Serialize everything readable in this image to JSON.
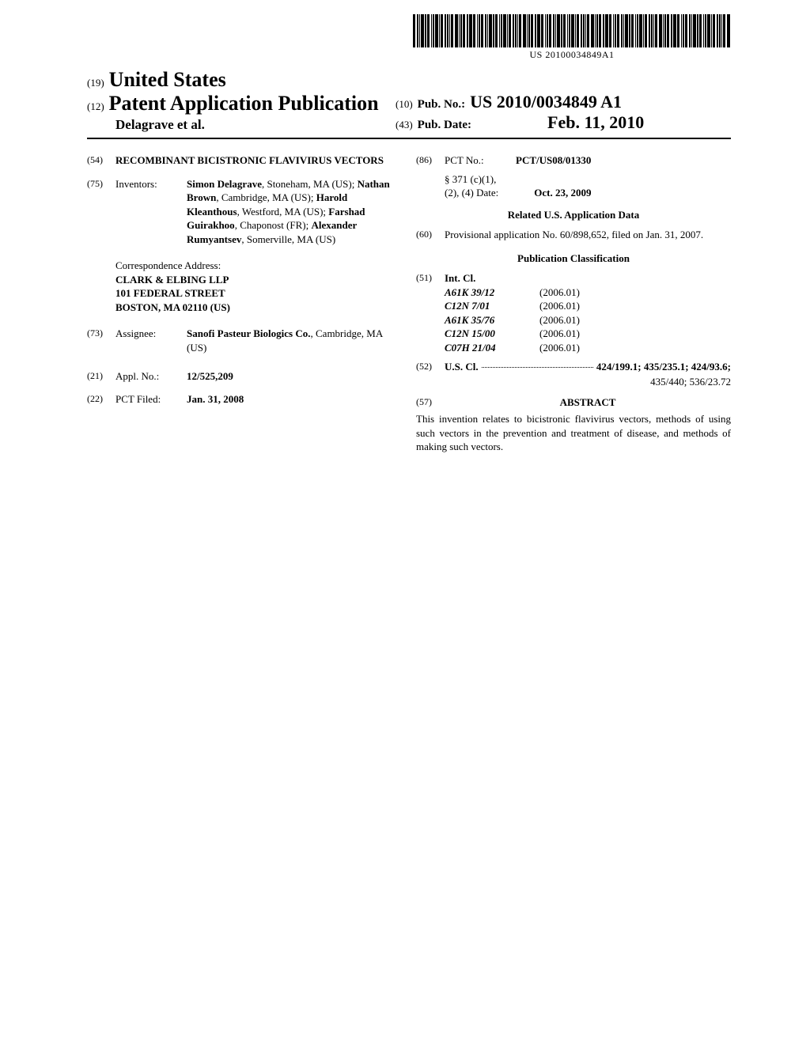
{
  "barcode_text": "US 20100034849A1",
  "header": {
    "field19_num": "(19)",
    "country": "United States",
    "field12_num": "(12)",
    "pub_type": "Patent Application Publication",
    "authors": "Delagrave et al.",
    "field10_num": "(10)",
    "pub_no_label": "Pub. No.:",
    "pub_no_value": "US 2010/0034849 A1",
    "field43_num": "(43)",
    "pub_date_label": "Pub. Date:",
    "pub_date_value": "Feb. 11, 2010"
  },
  "left": {
    "f54": {
      "num": "(54)",
      "title": "RECOMBINANT BICISTRONIC FLAVIVIRUS VECTORS"
    },
    "f75": {
      "num": "(75)",
      "label": "Inventors:",
      "html_parts": [
        {
          "b": "Simon Delagrave"
        },
        {
          "t": ", Stoneham, MA (US); "
        },
        {
          "b": "Nathan Brown"
        },
        {
          "t": ", Cambridge, MA (US); "
        },
        {
          "b": "Harold Kleanthous"
        },
        {
          "t": ", Westford, MA (US); "
        },
        {
          "b": "Farshad Guirakhoo"
        },
        {
          "t": ", Chaponost (FR); "
        },
        {
          "b": "Alexander Rumyantsev"
        },
        {
          "t": ", Somerville, MA (US)"
        }
      ]
    },
    "correspondence": {
      "label": "Correspondence Address:",
      "lines": [
        "CLARK & ELBING LLP",
        "101 FEDERAL STREET",
        "BOSTON, MA 02110 (US)"
      ]
    },
    "f73": {
      "num": "(73)",
      "label": "Assignee:",
      "name": "Sanofi Pasteur Biologics Co.",
      "loc": "Cambridge, MA (US)"
    },
    "f21": {
      "num": "(21)",
      "label": "Appl. No.:",
      "value": "12/525,209"
    },
    "f22": {
      "num": "(22)",
      "label": "PCT Filed:",
      "value": "Jan. 31, 2008"
    }
  },
  "right": {
    "f86": {
      "num": "(86)",
      "label": "PCT No.:",
      "value": "PCT/US08/01330"
    },
    "s371": {
      "l1": "§ 371 (c)(1),",
      "l2": "(2), (4) Date:",
      "value": "Oct. 23, 2009"
    },
    "related_heading": "Related U.S. Application Data",
    "f60": {
      "num": "(60)",
      "text": "Provisional application No. 60/898,652, filed on Jan. 31, 2007."
    },
    "pubclass_heading": "Publication Classification",
    "f51": {
      "num": "(51)",
      "label": "Int. Cl.",
      "rows": [
        {
          "code": "A61K 39/12",
          "year": "(2006.01)"
        },
        {
          "code": "C12N 7/01",
          "year": "(2006.01)"
        },
        {
          "code": "A61K 35/76",
          "year": "(2006.01)"
        },
        {
          "code": "C12N 15/00",
          "year": "(2006.01)"
        },
        {
          "code": "C07H 21/04",
          "year": "(2006.01)"
        }
      ]
    },
    "f52": {
      "num": "(52)",
      "label": "U.S. Cl.",
      "value1": "424/199.1; 435/235.1; 424/93.6;",
      "value2": "435/440; 536/23.72"
    },
    "f57": {
      "num": "(57)",
      "label": "ABSTRACT"
    },
    "abstract": "This invention relates to bicistronic flavivirus vectors, methods of using such vectors in the prevention and treatment of disease, and methods of making such vectors."
  }
}
